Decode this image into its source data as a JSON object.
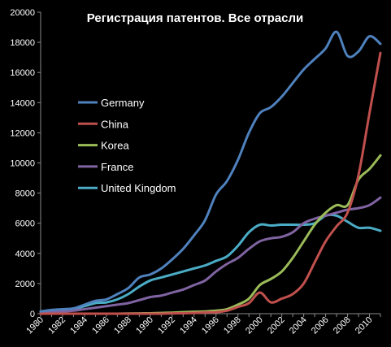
{
  "chart_data": {
    "type": "line",
    "title": "Регистрация патентов. Все отрасли",
    "xlabel": "",
    "ylabel": "",
    "xlim": [
      1980,
      2011
    ],
    "ylim": [
      0,
      20000
    ],
    "y_ticks": [
      0,
      2000,
      4000,
      6000,
      8000,
      10000,
      12000,
      14000,
      16000,
      18000,
      20000
    ],
    "x_ticks": [
      1980,
      1982,
      1984,
      1986,
      1988,
      1990,
      1992,
      1994,
      1996,
      1998,
      2000,
      2002,
      2004,
      2006,
      2008,
      2010
    ],
    "grid": false,
    "legend_position": "left-center",
    "background": "#000000",
    "x": [
      1980,
      1981,
      1982,
      1983,
      1984,
      1985,
      1986,
      1987,
      1988,
      1989,
      1990,
      1991,
      1992,
      1993,
      1994,
      1995,
      1996,
      1997,
      1998,
      1999,
      2000,
      2001,
      2002,
      2003,
      2004,
      2005,
      2006,
      2007,
      2008,
      2009,
      2010,
      2011
    ],
    "series": [
      {
        "name": "Germany",
        "color": "#4f81bd",
        "values": [
          150,
          250,
          300,
          350,
          600,
          850,
          950,
          1300,
          1700,
          2400,
          2600,
          3000,
          3600,
          4300,
          5200,
          6200,
          7900,
          8800,
          10200,
          12000,
          13300,
          13700,
          14400,
          15300,
          16200,
          16900,
          17600,
          18700,
          17100,
          17400,
          18400,
          17900
        ]
      },
      {
        "name": "China",
        "color": "#c0504d",
        "values": [
          0,
          0,
          0,
          0,
          0,
          0,
          0,
          0,
          0,
          0,
          0,
          0,
          20,
          30,
          50,
          80,
          100,
          200,
          450,
          700,
          1400,
          750,
          1000,
          1300,
          2000,
          3400,
          4800,
          5800,
          6700,
          9200,
          13300,
          17300
        ]
      },
      {
        "name": "Korea",
        "color": "#9bbb59",
        "values": [
          0,
          0,
          0,
          0,
          0,
          0,
          0,
          0,
          10,
          20,
          30,
          50,
          70,
          100,
          130,
          150,
          200,
          300,
          600,
          1000,
          1900,
          2300,
          2800,
          3700,
          4800,
          5900,
          6700,
          7200,
          7200,
          8900,
          9600,
          10500
        ]
      },
      {
        "name": "France",
        "color": "#8064a2",
        "values": [
          100,
          150,
          150,
          200,
          300,
          400,
          500,
          600,
          700,
          900,
          1100,
          1200,
          1400,
          1600,
          1900,
          2200,
          2800,
          3300,
          3700,
          4300,
          4800,
          5000,
          5100,
          5400,
          6000,
          6300,
          6500,
          6700,
          6900,
          7000,
          7200,
          7700
        ]
      },
      {
        "name": "United Kingdom",
        "color": "#4bacc6",
        "values": [
          150,
          200,
          250,
          300,
          500,
          700,
          750,
          950,
          1300,
          1800,
          2200,
          2400,
          2600,
          2800,
          3000,
          3200,
          3500,
          3800,
          4500,
          5400,
          5900,
          5850,
          5900,
          5900,
          5900,
          6000,
          6500,
          6500,
          6100,
          5700,
          5700,
          5500
        ]
      }
    ]
  }
}
